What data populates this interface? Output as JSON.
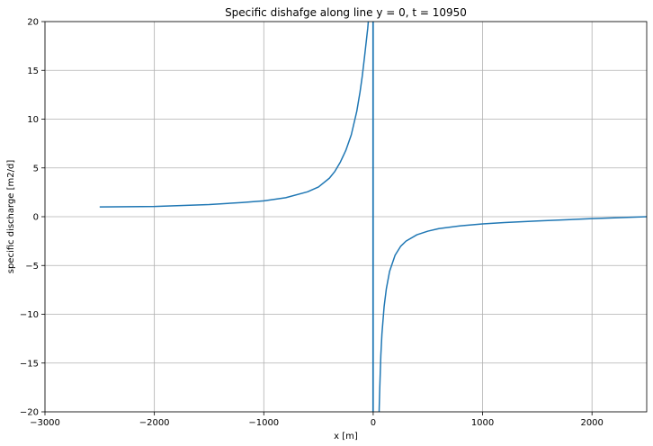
{
  "chart_data": {
    "type": "line",
    "title": "Specific dishafge along line y = 0, t = 10950",
    "xlabel": "x [m]",
    "ylabel": "specific discharge [m2/d]",
    "xlim": [
      -3000,
      2500
    ],
    "ylim": [
      -20,
      20
    ],
    "xticks": [
      -3000,
      -2000,
      -1000,
      0,
      1000,
      2000
    ],
    "xtick_labels": [
      "−3000",
      "−2000",
      "−1000",
      "0",
      "1000",
      "2000"
    ],
    "yticks": [
      -20,
      -15,
      -10,
      -5,
      0,
      5,
      10,
      15,
      20
    ],
    "ytick_labels": [
      "−20",
      "−15",
      "−10",
      "−5",
      "0",
      "5",
      "10",
      "15",
      "20"
    ],
    "grid": true,
    "legend": "none",
    "series": [
      {
        "color": "#1f77b4",
        "segments": [
          {
            "x": [
              -2500,
              -2000,
              -1500,
              -1200,
              -1000,
              -800,
              -600,
              -500,
              -400,
              -350,
              -300,
              -250,
              -200,
              -150,
              -120,
              -100,
              -80,
              -60,
              -50,
              -40,
              -30,
              -20,
              -12
            ],
            "y": [
              1.0,
              1.05,
              1.25,
              1.45,
              1.62,
              1.95,
              2.55,
              3.05,
              3.95,
              4.65,
              5.6,
              6.8,
              8.4,
              10.8,
              12.8,
              14.4,
              16.3,
              18.3,
              19.3,
              20.6,
              21.6,
              22.8,
              24.0
            ]
          },
          {
            "x": [
              -2,
              -2,
              0,
              0
            ],
            "y": [
              -25,
              25,
              25,
              -25
            ]
          },
          {
            "x": [
              50,
              55,
              60,
              70,
              80,
              100,
              120,
              150,
              200,
              250,
              300,
              400,
              500,
              600,
              800,
              1000,
              1200,
              1500,
              2000,
              2500
            ],
            "y": [
              -22.0,
              -19.6,
              -17.6,
              -14.2,
              -12.0,
              -9.2,
              -7.4,
              -5.6,
              -3.95,
              -3.05,
              -2.5,
              -1.85,
              -1.48,
              -1.22,
              -0.93,
              -0.74,
              -0.6,
              -0.44,
              -0.2,
              0.0
            ]
          }
        ]
      }
    ]
  }
}
